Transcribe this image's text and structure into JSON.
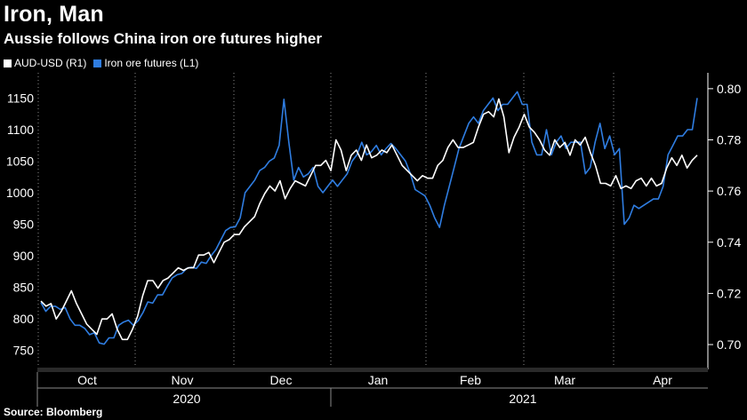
{
  "title": "Iron, Man",
  "subtitle": "Aussie follows China iron ore futures higher",
  "source": "Source: Bloomberg",
  "chart_data": {
    "type": "line",
    "left_axis": {
      "min": 720,
      "max": 1190,
      "ticks": [
        750,
        800,
        850,
        900,
        950,
        1000,
        1050,
        1100,
        1150
      ]
    },
    "right_axis": {
      "min": 0.6903,
      "max": 0.8062,
      "ticks": [
        "0.70",
        "0.72",
        "0.74",
        "0.76",
        "0.78",
        "0.80"
      ]
    },
    "months": [
      "Oct",
      "Nov",
      "Dec",
      "Jan",
      "Feb",
      "Mar",
      "Apr"
    ],
    "years": [
      "2020",
      "2021"
    ],
    "grid": true,
    "legend_position": "top-left",
    "series": [
      {
        "name": "AUD-USD (R1)",
        "axis": "right",
        "color": "#ffffff",
        "values": [
          0.717,
          0.715,
          0.716,
          0.71,
          0.713,
          0.717,
          0.721,
          0.716,
          0.712,
          0.708,
          0.706,
          0.704,
          0.71,
          0.71,
          0.712,
          0.706,
          0.702,
          0.702,
          0.706,
          0.711,
          0.719,
          0.725,
          0.725,
          0.722,
          0.725,
          0.726,
          0.728,
          0.73,
          0.729,
          0.73,
          0.73,
          0.735,
          0.735,
          0.736,
          0.732,
          0.736,
          0.74,
          0.741,
          0.743,
          0.743,
          0.746,
          0.748,
          0.75,
          0.755,
          0.759,
          0.762,
          0.76,
          0.764,
          0.757,
          0.761,
          0.764,
          0.763,
          0.762,
          0.766,
          0.77,
          0.77,
          0.772,
          0.768,
          0.78,
          0.776,
          0.768,
          0.774,
          0.776,
          0.772,
          0.778,
          0.773,
          0.774,
          0.776,
          0.775,
          0.778,
          0.774,
          0.77,
          0.768,
          0.766,
          0.764,
          0.766,
          0.765,
          0.765,
          0.77,
          0.772,
          0.777,
          0.78,
          0.777,
          0.777,
          0.778,
          0.779,
          0.785,
          0.79,
          0.791,
          0.789,
          0.796,
          0.789,
          0.775,
          0.781,
          0.785,
          0.79,
          0.785,
          0.783,
          0.78,
          0.776,
          0.774,
          0.78,
          0.777,
          0.779,
          0.774,
          0.78,
          0.778,
          0.781,
          0.775,
          0.77,
          0.763,
          0.763,
          0.762,
          0.766,
          0.761,
          0.762,
          0.761,
          0.764,
          0.765,
          0.762,
          0.765,
          0.762,
          0.763,
          0.769,
          0.773,
          0.77,
          0.774,
          0.769,
          0.772,
          0.774
        ]
      },
      {
        "name": "Iron ore futures (L1)",
        "axis": "left",
        "color": "#2f7de1",
        "values": [
          826,
          812,
          820,
          820,
          815,
          818,
          800,
          790,
          790,
          785,
          775,
          778,
          762,
          760,
          770,
          770,
          790,
          795,
          798,
          790,
          797,
          810,
          827,
          825,
          838,
          838,
          852,
          865,
          870,
          872,
          880,
          882,
          880,
          890,
          888,
          900,
          910,
          925,
          940,
          945,
          946,
          960,
          1000,
          1010,
          1020,
          1035,
          1040,
          1050,
          1055,
          1075,
          1148,
          1080,
          1020,
          1040,
          1025,
          1030,
          1040,
          1010,
          1000,
          1010,
          1020,
          1010,
          1020,
          1030,
          1050,
          1060,
          1080,
          1060,
          1065,
          1075,
          1060,
          1070,
          1078,
          1070,
          1060,
          1050,
          1030,
          1005,
          1000,
          995,
          980,
          960,
          945,
          980,
          1010,
          1040,
          1070,
          1090,
          1110,
          1120,
          1110,
          1130,
          1140,
          1150,
          1130,
          1140,
          1140,
          1150,
          1160,
          1140,
          1140,
          1080,
          1060,
          1060,
          1100,
          1060,
          1080,
          1090,
          1070,
          1080,
          1080,
          1080,
          1030,
          1040,
          1080,
          1110,
          1070,
          1090,
          1060,
          1070,
          950,
          960,
          980,
          975,
          980,
          985,
          990,
          990,
          1010,
          1060,
          1075,
          1090,
          1090,
          1100,
          1100,
          1150
        ]
      }
    ]
  }
}
